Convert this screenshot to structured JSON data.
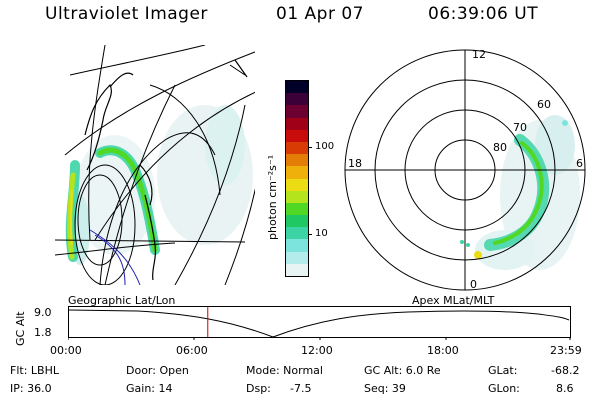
{
  "header": {
    "title": "Ultraviolet Imager",
    "date": "01 Apr 07",
    "time": "06:39:06 UT"
  },
  "colorbar": {
    "label": "photon cm⁻²s⁻¹",
    "ticks": [
      "100",
      "10"
    ],
    "colors": [
      "#e8f4f4",
      "#b4ecec",
      "#7ce4dc",
      "#3cd4a4",
      "#20c864",
      "#50d824",
      "#b4e41c",
      "#ecdc14",
      "#f0b00c",
      "#e47c08",
      "#d83c04",
      "#c80c0c",
      "#a00018",
      "#6c0030",
      "#3c0038",
      "#000028"
    ]
  },
  "polar": {
    "labels": {
      "top": "12",
      "left": "18",
      "right": "6",
      "bottom": "0",
      "lat60": "60",
      "lat70": "70",
      "lat80": "80"
    }
  },
  "timeline": {
    "left_title": "Geographic Lat/Lon",
    "right_title": "Apex MLat/MLT",
    "axis_label": "GC Alt",
    "y_top": "9.0",
    "y_bottom": "1.8",
    "times": [
      "00:00",
      "06:00",
      "12:00",
      "18:00",
      "23:59"
    ],
    "current_time_fraction": 0.277
  },
  "footer": {
    "filter_label": "Flt: LBHL",
    "ip_label": "IP: 36.0",
    "door_label": "Door: Open",
    "gain_label": "Gain: 14",
    "mode_label": "Mode: Normal",
    "dsp_label": "Dsp:",
    "dsp_value": "-7.5",
    "gcalt_label": "GC Alt: 6.0 Re",
    "seq_label": "Seq: 39",
    "glat_label": "GLat:",
    "glat_value": "-68.2",
    "glon_label": "GLon:",
    "glon_value": "8.6"
  }
}
